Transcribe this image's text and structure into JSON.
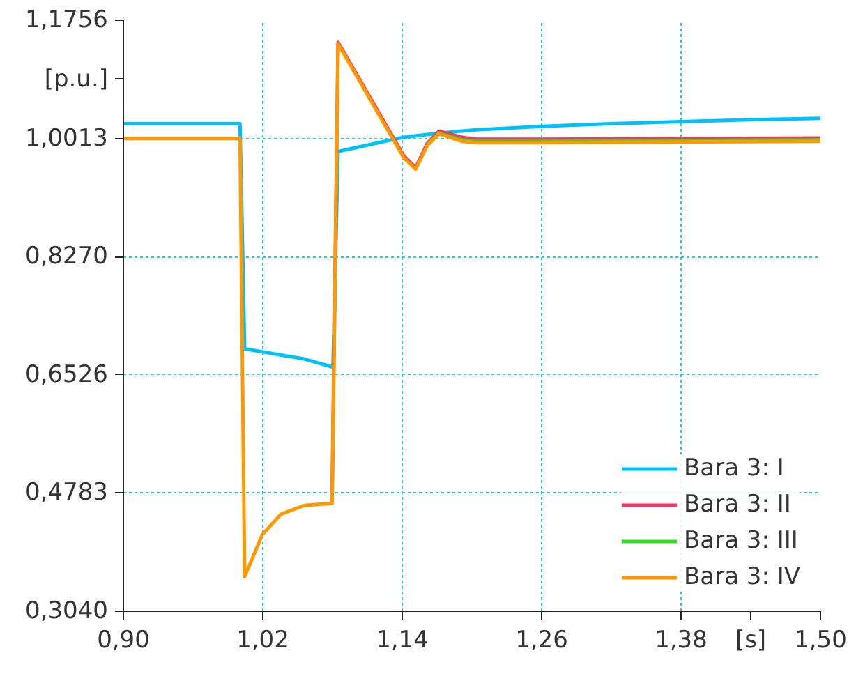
{
  "chart_data": {
    "type": "line",
    "xlabel": "[s]",
    "ylabel": "[p.u.]",
    "xlim": [
      0.9,
      1.5
    ],
    "ylim": [
      0.304,
      1.1756
    ],
    "xticks": [
      {
        "value": 0.9,
        "label": "0,90"
      },
      {
        "value": 1.02,
        "label": "1,02"
      },
      {
        "value": 1.14,
        "label": "1,14"
      },
      {
        "value": 1.26,
        "label": "1,26"
      },
      {
        "value": 1.38,
        "label": "1,38"
      },
      {
        "value": 1.5,
        "label": "1,50"
      }
    ],
    "yticks": [
      {
        "value": 0.304,
        "label": "0,3040"
      },
      {
        "value": 0.4783,
        "label": "0,4783"
      },
      {
        "value": 0.6526,
        "label": "0,6526"
      },
      {
        "value": 0.827,
        "label": "0,8270"
      },
      {
        "value": 1.0013,
        "label": "1,0013"
      },
      {
        "value": 1.1756,
        "label": "1,1756"
      }
    ],
    "grid": true,
    "legend": "bottom right",
    "line_style": "solid",
    "marker": "none",
    "series": [
      {
        "name": "Bara 3: I",
        "color": "#00bfff",
        "x": [
          0.9,
          1.0004,
          1.0044,
          1.0556,
          1.0804,
          1.0848,
          1.1412,
          1.1716,
          1.2036,
          1.26,
          1.32,
          1.38,
          1.44,
          1.5
        ],
        "values": [
          1.023,
          1.023,
          0.691,
          0.676,
          0.664,
          0.982,
          1.003,
          1.009,
          1.014,
          1.019,
          1.023,
          1.026,
          1.029,
          1.031
        ]
      },
      {
        "name": "Bara 3: II",
        "color": "#ff3366",
        "x": [
          1.0796,
          1.0848,
          1.1412,
          1.1516,
          1.1616,
          1.1716,
          1.1916,
          1.2036,
          1.26,
          1.38,
          1.5
        ],
        "values": [
          0.463,
          1.143,
          0.976,
          0.958,
          0.994,
          1.012,
          1.003,
          1.0,
          1.0,
          1.001,
          1.002
        ]
      },
      {
        "name": "Bara 3: III",
        "color": "#33dd22",
        "x": [
          1.1616,
          1.1716,
          1.1916,
          1.2036,
          1.26,
          1.38,
          1.5
        ],
        "values": [
          0.992,
          1.009,
          0.999,
          0.997,
          0.997,
          0.998,
          0.999
        ]
      },
      {
        "name": "Bara 3: IV",
        "color": "#ff9900",
        "x": [
          0.9,
          1.0004,
          1.0044,
          1.0196,
          1.0356,
          1.0556,
          1.0796,
          1.0848,
          1.1412,
          1.1516,
          1.1616,
          1.1716,
          1.1916,
          1.2036,
          1.26,
          1.38,
          1.5
        ],
        "values": [
          1.001,
          1.001,
          0.355,
          0.417,
          0.447,
          0.46,
          0.463,
          1.141,
          0.973,
          0.956,
          0.991,
          1.008,
          0.997,
          0.995,
          0.995,
          0.996,
          0.997
        ]
      }
    ]
  }
}
